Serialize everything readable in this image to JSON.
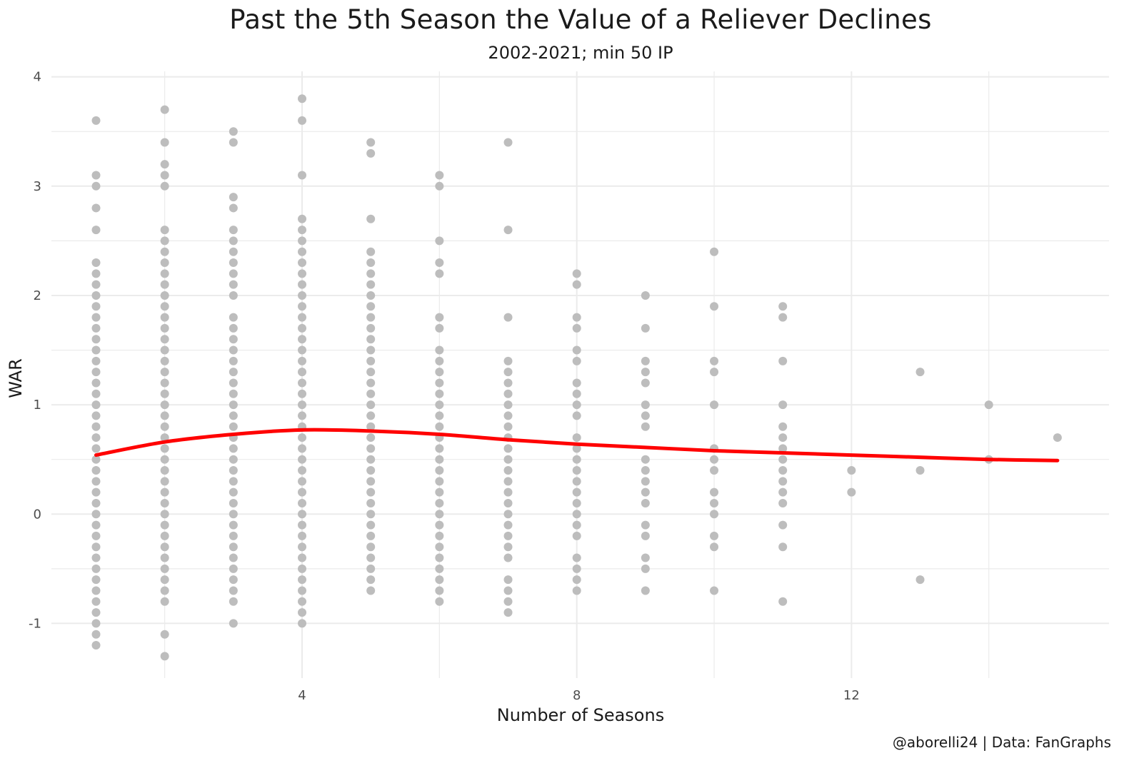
{
  "title": "Past the 5th Season the Value of a Reliever Declines",
  "subtitle": "2002-2021; min 50 IP",
  "caption": "@aborelli24 | Data: FanGraphs",
  "colors": {
    "points": "#bdbdbd",
    "smooth": "#ff0000",
    "grid": "#ebebeb"
  },
  "chart_data": {
    "type": "scatter",
    "xlabel": "Number of Seasons",
    "ylabel": "WAR",
    "xlim": [
      0.35,
      15.75
    ],
    "ylim": [
      -1.5,
      4.05
    ],
    "x_ticks": [
      4,
      8,
      12
    ],
    "y_ticks": [
      -1,
      0,
      1,
      2,
      3,
      4
    ],
    "grid": true,
    "legend": "none",
    "points_by_season": [
      {
        "x": 1,
        "y": [
          3.6,
          3.1,
          3.0,
          2.8,
          2.6,
          2.3,
          2.2,
          2.1,
          2.0,
          1.9,
          1.8,
          1.7,
          1.6,
          1.5,
          1.4,
          1.3,
          1.2,
          1.1,
          1.0,
          0.9,
          0.8,
          0.7,
          0.6,
          0.5,
          0.4,
          0.3,
          0.2,
          0.1,
          0.0,
          -0.1,
          -0.2,
          -0.3,
          -0.4,
          -0.5,
          -0.6,
          -0.7,
          -0.8,
          -0.9,
          -1.0,
          -1.1,
          -1.2
        ]
      },
      {
        "x": 2,
        "y": [
          3.7,
          3.4,
          3.2,
          3.1,
          3.0,
          2.6,
          2.5,
          2.4,
          2.3,
          2.2,
          2.1,
          2.0,
          1.9,
          1.8,
          1.7,
          1.6,
          1.5,
          1.4,
          1.3,
          1.2,
          1.1,
          1.0,
          0.9,
          0.8,
          0.7,
          0.6,
          0.5,
          0.4,
          0.3,
          0.2,
          0.1,
          0.0,
          -0.1,
          -0.2,
          -0.3,
          -0.4,
          -0.5,
          -0.6,
          -0.7,
          -0.8,
          -1.1,
          -1.3
        ]
      },
      {
        "x": 3,
        "y": [
          3.5,
          3.4,
          2.9,
          2.8,
          2.6,
          2.5,
          2.4,
          2.3,
          2.2,
          2.1,
          2.0,
          1.8,
          1.7,
          1.6,
          1.5,
          1.4,
          1.3,
          1.2,
          1.1,
          1.0,
          0.9,
          0.8,
          0.7,
          0.6,
          0.5,
          0.4,
          0.3,
          0.2,
          0.1,
          0.0,
          -0.1,
          -0.2,
          -0.3,
          -0.4,
          -0.5,
          -0.6,
          -0.7,
          -0.8,
          -1.0
        ]
      },
      {
        "x": 4,
        "y": [
          3.8,
          3.6,
          3.1,
          2.7,
          2.6,
          2.5,
          2.4,
          2.3,
          2.2,
          2.1,
          2.0,
          1.9,
          1.8,
          1.7,
          1.6,
          1.5,
          1.4,
          1.3,
          1.2,
          1.1,
          1.0,
          0.9,
          0.8,
          0.7,
          0.6,
          0.5,
          0.4,
          0.3,
          0.2,
          0.1,
          0.0,
          -0.1,
          -0.2,
          -0.3,
          -0.4,
          -0.5,
          -0.6,
          -0.7,
          -0.8,
          -0.9,
          -1.0
        ]
      },
      {
        "x": 5,
        "y": [
          3.4,
          3.3,
          2.7,
          2.4,
          2.3,
          2.2,
          2.1,
          2.0,
          1.9,
          1.8,
          1.7,
          1.6,
          1.5,
          1.4,
          1.3,
          1.2,
          1.1,
          1.0,
          0.9,
          0.8,
          0.7,
          0.6,
          0.5,
          0.4,
          0.3,
          0.2,
          0.1,
          0.0,
          -0.1,
          -0.2,
          -0.3,
          -0.4,
          -0.5,
          -0.6,
          -0.7
        ]
      },
      {
        "x": 6,
        "y": [
          3.1,
          3.0,
          2.5,
          2.3,
          2.2,
          1.8,
          1.7,
          1.5,
          1.4,
          1.3,
          1.2,
          1.1,
          1.0,
          0.9,
          0.8,
          0.7,
          0.6,
          0.5,
          0.4,
          0.3,
          0.2,
          0.1,
          0.0,
          -0.1,
          -0.2,
          -0.3,
          -0.4,
          -0.5,
          -0.6,
          -0.7,
          -0.8
        ]
      },
      {
        "x": 7,
        "y": [
          3.4,
          2.6,
          1.8,
          1.4,
          1.3,
          1.2,
          1.1,
          1.0,
          0.9,
          0.8,
          0.7,
          0.6,
          0.5,
          0.4,
          0.3,
          0.2,
          0.1,
          0.0,
          -0.1,
          -0.2,
          -0.3,
          -0.4,
          -0.6,
          -0.7,
          -0.8,
          -0.9
        ]
      },
      {
        "x": 8,
        "y": [
          2.2,
          2.1,
          1.8,
          1.7,
          1.5,
          1.4,
          1.2,
          1.1,
          1.0,
          0.9,
          0.7,
          0.6,
          0.5,
          0.4,
          0.3,
          0.2,
          0.1,
          0.0,
          -0.1,
          -0.2,
          -0.4,
          -0.5,
          -0.6,
          -0.7
        ]
      },
      {
        "x": 9,
        "y": [
          2.0,
          1.7,
          1.4,
          1.3,
          1.2,
          1.0,
          0.9,
          0.8,
          0.5,
          0.4,
          0.3,
          0.2,
          0.1,
          -0.1,
          -0.2,
          -0.4,
          -0.5,
          -0.7
        ]
      },
      {
        "x": 10,
        "y": [
          2.4,
          1.9,
          1.4,
          1.3,
          1.0,
          0.6,
          0.5,
          0.4,
          0.2,
          0.1,
          0.0,
          -0.2,
          -0.3,
          -0.7
        ]
      },
      {
        "x": 11,
        "y": [
          1.9,
          1.8,
          1.4,
          1.0,
          0.8,
          0.7,
          0.6,
          0.5,
          0.4,
          0.3,
          0.2,
          0.1,
          -0.1,
          -0.3,
          -0.8
        ]
      },
      {
        "x": 12,
        "y": [
          0.4,
          0.2
        ]
      },
      {
        "x": 13,
        "y": [
          1.3,
          0.4,
          -0.6
        ]
      },
      {
        "x": 14,
        "y": [
          1.0,
          0.5
        ]
      },
      {
        "x": 15,
        "y": [
          0.7
        ]
      }
    ],
    "smooth_line": {
      "x": [
        1,
        2,
        3,
        4,
        5,
        6,
        7,
        8,
        9,
        10,
        11,
        12,
        13,
        14,
        15
      ],
      "y": [
        0.54,
        0.66,
        0.73,
        0.77,
        0.76,
        0.73,
        0.68,
        0.64,
        0.61,
        0.58,
        0.56,
        0.54,
        0.52,
        0.5,
        0.49
      ]
    }
  }
}
